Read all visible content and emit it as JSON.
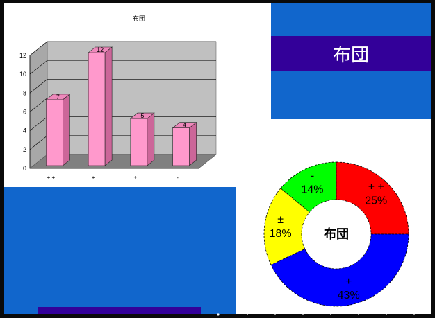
{
  "slide": {
    "title": "布団"
  },
  "bar_chart": {
    "title": "布団"
  },
  "donut_chart": {
    "center_label": "布団"
  },
  "chart_data": [
    {
      "type": "bar",
      "title": "布団",
      "categories": [
        "+ +",
        "+",
        "±",
        "-"
      ],
      "values": [
        7,
        12,
        5,
        4
      ],
      "ylim": [
        0,
        12
      ],
      "yticks": [
        0,
        2,
        4,
        6,
        8,
        10,
        12
      ],
      "grid": true,
      "bar_color": "#ff99cc",
      "legend": "none"
    },
    {
      "type": "pie",
      "style": "donut",
      "center_label": "布団",
      "slices": [
        {
          "label": "+ +",
          "value": 25,
          "percent_label": "25%",
          "color": "#ff0000"
        },
        {
          "label": "+",
          "value": 43,
          "percent_label": "43%",
          "color": "#0000ff"
        },
        {
          "label": "±",
          "value": 18,
          "percent_label": "18%",
          "color": "#ffff00"
        },
        {
          "label": "-",
          "value": 14,
          "percent_label": "14%",
          "color": "#00ff00"
        }
      ]
    }
  ]
}
